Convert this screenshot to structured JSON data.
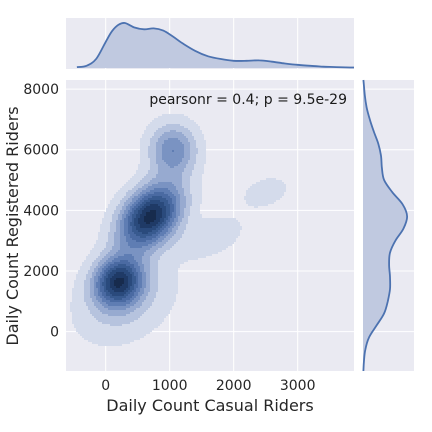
{
  "chart_data": {
    "type": "kde-joint",
    "xlabel": "Daily Count Casual Riders",
    "ylabel": "Daily Count Registered Riders",
    "annotation": "pearsonr = 0.4; p = 9.5e-29",
    "xlim": [
      -620,
      3880
    ],
    "ylim": [
      -1300,
      8300
    ],
    "xticks": [
      0,
      1000,
      2000,
      3000
    ],
    "yticks": [
      0,
      2000,
      4000,
      6000,
      8000
    ],
    "grid": true,
    "colors": {
      "background": "#eaeaf2",
      "line": "#4c72b0",
      "fill": "#c0c9e0",
      "grid": "#ffffff"
    },
    "contour_levels": [
      "#d4dbeb",
      "#b6c3de",
      "#97aad0",
      "#7a93c2",
      "#5f7db3",
      "#4a6aa2",
      "#385a8f",
      "#2a4a7c",
      "#1f3a66",
      "#172b4d"
    ],
    "density_peaks": [
      {
        "x": 700,
        "y": 3800,
        "sx": 330,
        "sy": 720,
        "rho": 0.35,
        "w": 1.0
      },
      {
        "x": 200,
        "y": 1650,
        "sx": 260,
        "sy": 560,
        "rho": 0.1,
        "w": 0.85
      },
      {
        "x": 1050,
        "y": 6000,
        "sx": 260,
        "sy": 600,
        "rho": 0.0,
        "w": 0.45
      },
      {
        "x": 1650,
        "y": 3100,
        "sx": 330,
        "sy": 450,
        "rho": 0.4,
        "w": 0.15
      },
      {
        "x": 2500,
        "y": 4600,
        "sx": 350,
        "sy": 500,
        "rho": 0.3,
        "w": 0.09
      },
      {
        "x": 300,
        "y": 1000,
        "sx": 550,
        "sy": 1000,
        "rho": 0.3,
        "w": 0.18
      }
    ],
    "x_marginal": {
      "x": [
        -450,
        -300,
        -150,
        0,
        100,
        200,
        300,
        450,
        600,
        750,
        900,
        1050,
        1200,
        1400,
        1600,
        1800,
        2000,
        2200,
        2400,
        2600,
        2800,
        3000,
        3200,
        3400,
        3600,
        3880
      ],
      "density": [
        0.02,
        0.05,
        0.2,
        0.58,
        0.82,
        0.96,
        1.0,
        0.9,
        0.86,
        0.88,
        0.83,
        0.7,
        0.55,
        0.38,
        0.26,
        0.2,
        0.16,
        0.16,
        0.17,
        0.14,
        0.1,
        0.07,
        0.05,
        0.03,
        0.02,
        0.01
      ]
    },
    "y_marginal": {
      "y": [
        -1300,
        -1000,
        -600,
        -200,
        200,
        600,
        1000,
        1400,
        1800,
        2200,
        2600,
        3000,
        3400,
        3800,
        4200,
        4600,
        5000,
        5400,
        5800,
        6200,
        6600,
        7000,
        7400,
        7800,
        8300
      ],
      "density": [
        0.01,
        0.02,
        0.05,
        0.13,
        0.3,
        0.47,
        0.55,
        0.6,
        0.6,
        0.58,
        0.6,
        0.72,
        0.9,
        0.98,
        0.88,
        0.65,
        0.47,
        0.42,
        0.4,
        0.34,
        0.24,
        0.15,
        0.08,
        0.04,
        0.01
      ]
    }
  }
}
